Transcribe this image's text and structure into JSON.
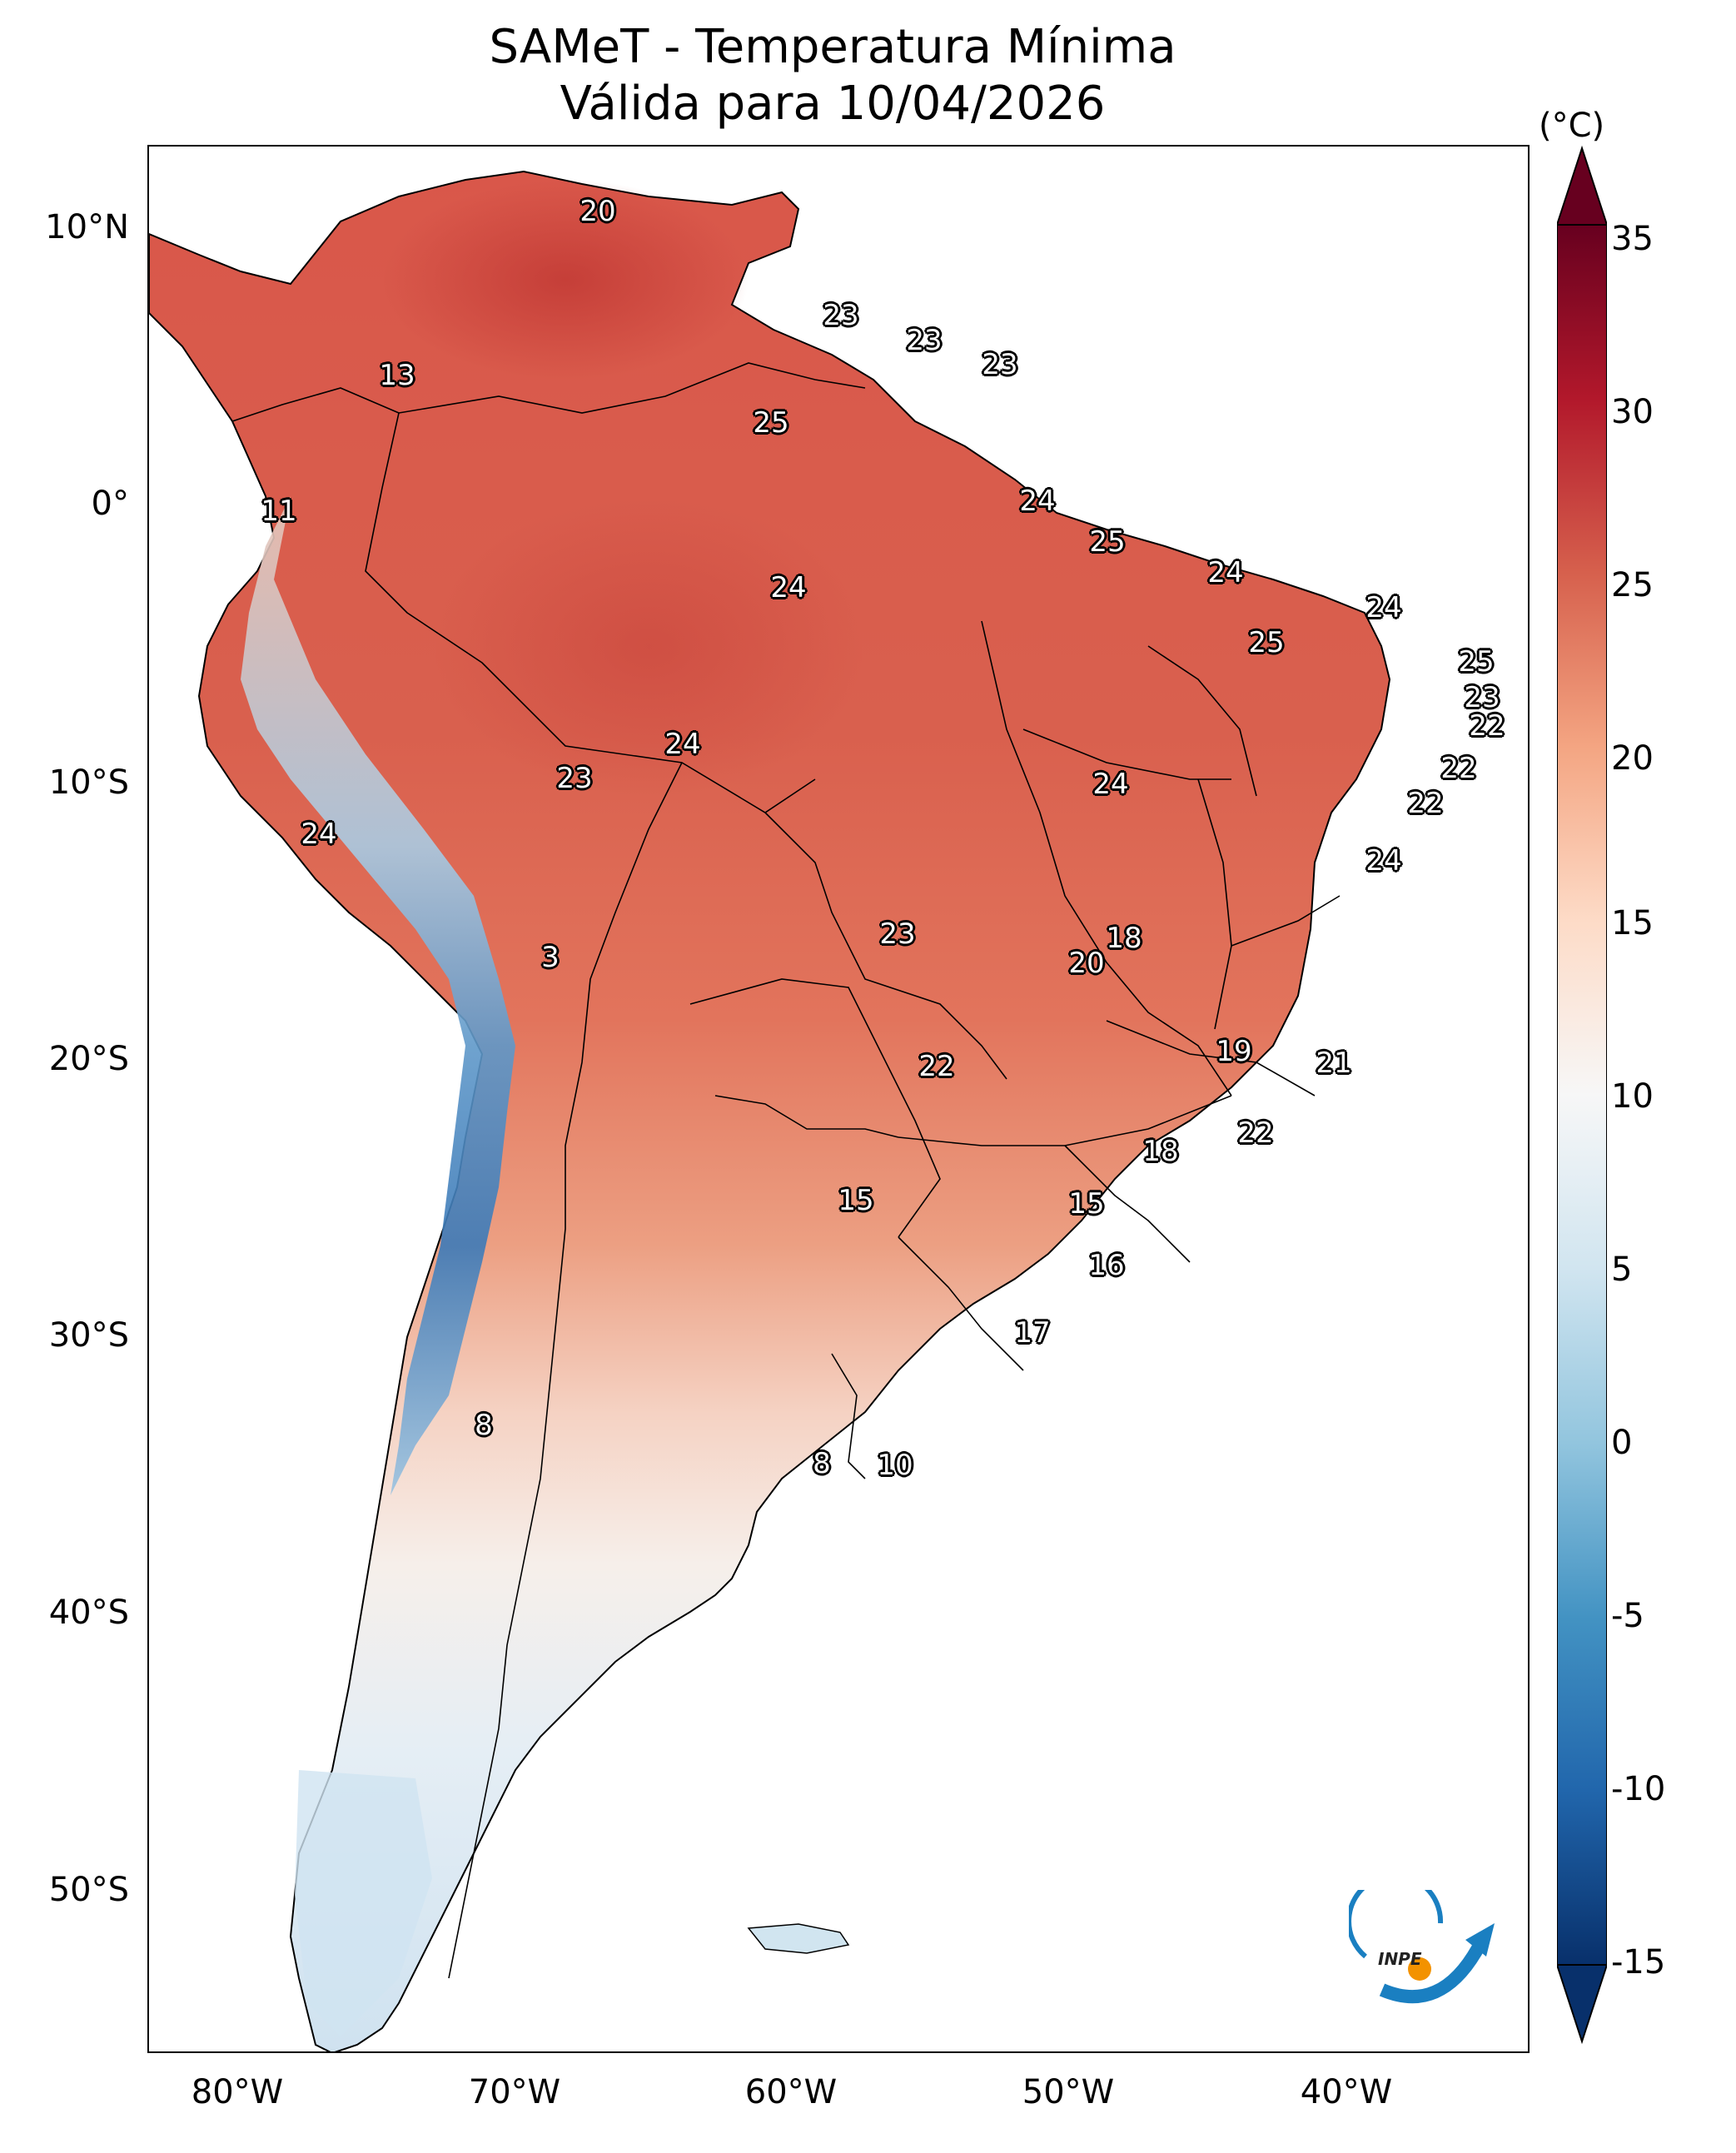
{
  "title": {
    "line1": "SAMeT - Temperatura Mínima",
    "line2": "Válida para 10/04/2026"
  },
  "colorbar": {
    "unit": "(°C)",
    "ticks": [
      "35",
      "30",
      "25",
      "20",
      "15",
      "10",
      "5",
      "0",
      "-5",
      "-10",
      "-15"
    ],
    "min": -15,
    "max": 35,
    "colors": [
      "#08306b",
      "#2166ac",
      "#4393c3",
      "#92c5de",
      "#d1e5f0",
      "#f7f7f7",
      "#fddbc7",
      "#f4a582",
      "#d6604d",
      "#b2182b",
      "#67001f"
    ]
  },
  "axes": {
    "lat_labels": [
      "10°N",
      "0°",
      "10°S",
      "20°S",
      "30°S",
      "40°S",
      "50°S"
    ],
    "lon_labels": [
      "80°W",
      "70°W",
      "60°W",
      "50°W",
      "40°W"
    ]
  },
  "map_values": {
    "region_colors": {
      "land_hot": "#d9574a",
      "land_warm": "#e8866a",
      "land_mild": "#f4b99e",
      "land_cool": "#f7e3da",
      "land_cold": "#e0ecf4",
      "andes": "#7db3d8",
      "andes_peak": "#3c7ab8"
    },
    "city_values": [
      {
        "label": "20"
      },
      {
        "label": "23"
      },
      {
        "label": "23"
      },
      {
        "label": "23"
      },
      {
        "label": "13"
      },
      {
        "label": "25"
      },
      {
        "label": "11"
      },
      {
        "label": "24"
      },
      {
        "label": "25"
      },
      {
        "label": "24"
      },
      {
        "label": "24"
      },
      {
        "label": "24"
      },
      {
        "label": "25"
      },
      {
        "label": "25"
      },
      {
        "label": "23"
      },
      {
        "label": "22"
      },
      {
        "label": "24"
      },
      {
        "label": "23"
      },
      {
        "label": "22"
      },
      {
        "label": "22"
      },
      {
        "label": "24"
      },
      {
        "label": "24"
      },
      {
        "label": "24"
      },
      {
        "label": "3"
      },
      {
        "label": "23"
      },
      {
        "label": "18"
      },
      {
        "label": "20"
      },
      {
        "label": "19"
      },
      {
        "label": "21"
      },
      {
        "label": "22"
      },
      {
        "label": "22"
      },
      {
        "label": "18"
      },
      {
        "label": "15"
      },
      {
        "label": "15"
      },
      {
        "label": "16"
      },
      {
        "label": "17"
      },
      {
        "label": "8"
      },
      {
        "label": "8"
      },
      {
        "label": "10"
      }
    ]
  },
  "logo": {
    "text": "INPE"
  }
}
